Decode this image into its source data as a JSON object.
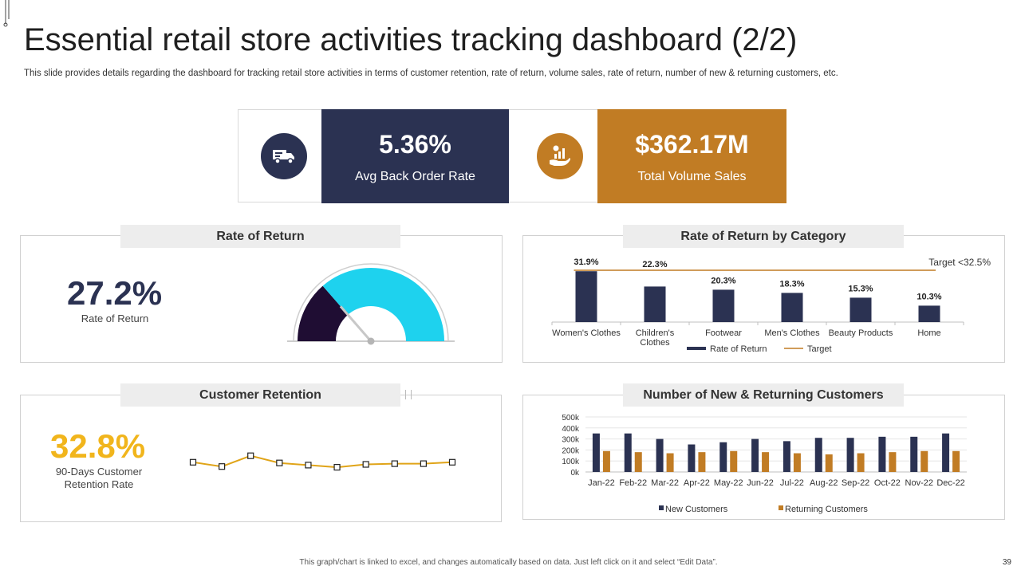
{
  "page": {
    "title": "Essential retail store activities tracking dashboard (2/2)",
    "subtitle": "This slide provides details regarding the dashboard for tracking retail store activities in terms of customer retention, rate of return, volume sales, rate of return, number of new & returning customers, etc.",
    "footer_note": "This graph/chart is linked to excel, and changes automatically based on data. Just left click on it and select “Edit Data”.",
    "page_number": "39"
  },
  "colors": {
    "navy": "#2b3252",
    "gold": "#c17c24",
    "cyan": "#1ed2ee",
    "dark_purple": "#1f0d33",
    "yellow": "#f1b51c",
    "line_gold": "#e0a418"
  },
  "kpis": {
    "back_order": {
      "value": "5.36%",
      "label": "Avg Back Order Rate",
      "icon": "delivery-truck-icon"
    },
    "volume_sales": {
      "value": "$362.17M",
      "label": "Total Volume Sales",
      "icon": "sales-growth-hand-icon"
    }
  },
  "rate_of_return": {
    "header": "Rate of Return",
    "value": "27.2%",
    "label": "Rate of Return",
    "gauge_fraction": 0.272
  },
  "customer_retention": {
    "header": "Customer Retention",
    "value": "32.8%",
    "label_line1": "90-Days Customer",
    "label_line2": "Retention Rate"
  },
  "return_by_category": {
    "header": "Rate of Return by Category",
    "target_label": "Target  <32.5%"
  },
  "customers": {
    "header": "Number of New & Returning Customers"
  },
  "chart_data": [
    {
      "type": "bar",
      "title": "Rate of Return by Category",
      "categories": [
        "Women's Clothes",
        "Children's Clothes",
        "Footwear",
        "Men's Clothes",
        "Beauty Products",
        "Home"
      ],
      "series": [
        {
          "name": "Rate of Return",
          "values": [
            31.9,
            22.3,
            20.3,
            18.3,
            15.3,
            10.3
          ]
        },
        {
          "name": "Target",
          "type": "line",
          "values": [
            32.5,
            32.5,
            32.5,
            32.5,
            32.5,
            32.5
          ]
        }
      ],
      "data_labels": [
        "31.9%",
        "22.3%",
        "20.3%",
        "18.3%",
        "15.3%",
        "10.3%"
      ],
      "ylim": [
        0,
        40
      ],
      "legend": "bottom"
    },
    {
      "type": "bar",
      "title": "Number of New & Returning Customers",
      "categories": [
        "Jan-22",
        "Feb-22",
        "Mar-22",
        "Apr-22",
        "May-22",
        "Jun-22",
        "Jul-22",
        "Aug-22",
        "Sep-22",
        "Oct-22",
        "Nov-22",
        "Dec-22"
      ],
      "series": [
        {
          "name": "New Customers",
          "values": [
            350,
            350,
            300,
            250,
            270,
            300,
            280,
            310,
            310,
            320,
            320,
            350
          ]
        },
        {
          "name": "Returning Customers",
          "values": [
            190,
            180,
            170,
            180,
            190,
            180,
            170,
            160,
            170,
            180,
            190,
            190
          ]
        }
      ],
      "yticks": [
        "0k",
        "100k",
        "200k",
        "300k",
        "400k",
        "500k"
      ],
      "ylim": [
        0,
        500
      ],
      "grid": true,
      "legend": "bottom"
    },
    {
      "type": "line",
      "title": "",
      "x": [
        1,
        2,
        3,
        4,
        5,
        6,
        7,
        8,
        9,
        10
      ],
      "series": [
        {
          "name": "",
          "values": [
            34.0,
            31.0,
            38.5,
            33.5,
            32.0,
            30.5,
            32.5,
            33.0,
            33.0,
            34.0
          ]
        }
      ],
      "ylim": [
        20,
        45
      ],
      "grid": false
    }
  ]
}
